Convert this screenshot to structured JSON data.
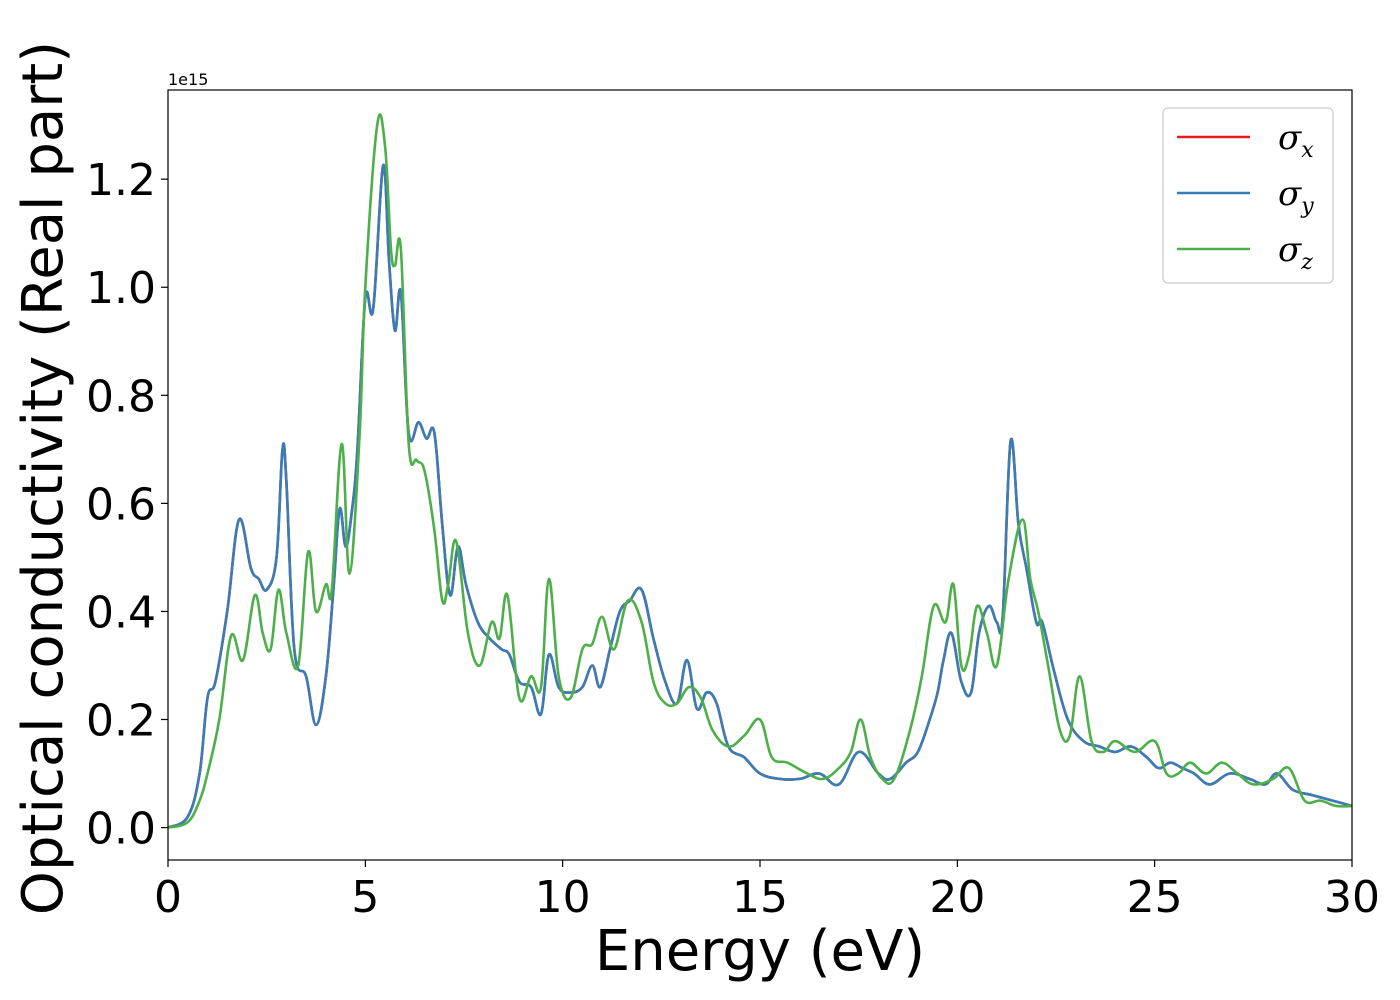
{
  "chart_data": {
    "type": "line",
    "title": "",
    "xlabel": "Energy (eV)",
    "ylabel": "Optical conductivity (Real part)",
    "y_offset_label": "1e15",
    "xlim": [
      0,
      30
    ],
    "ylim": [
      -0.06,
      1.365
    ],
    "xticks": [
      0,
      5,
      10,
      15,
      20,
      25,
      30
    ],
    "xtick_labels": [
      "0",
      "5",
      "10",
      "15",
      "20",
      "25",
      "30"
    ],
    "yticks": [
      0.0,
      0.2,
      0.4,
      0.6,
      0.8,
      1.0,
      1.2
    ],
    "ytick_labels": [
      "0.0",
      "0.2",
      "0.4",
      "0.6",
      "0.8",
      "1.0",
      "1.2"
    ],
    "grid": false,
    "legend_position": "top-right",
    "series": [
      {
        "name": "σx",
        "symbol": "σ",
        "subscript": "x",
        "color": "#e41a1c",
        "x": [
          0,
          0.5,
          0.8,
          1.0,
          1.2,
          1.5,
          1.8,
          2.1,
          2.3,
          2.5,
          2.75,
          2.9,
          3.0,
          3.2,
          3.5,
          3.75,
          4.0,
          4.2,
          4.35,
          4.5,
          4.65,
          4.8,
          5.0,
          5.2,
          5.45,
          5.6,
          5.75,
          5.9,
          6.1,
          6.35,
          6.55,
          6.75,
          6.95,
          7.15,
          7.35,
          7.55,
          7.85,
          8.15,
          8.45,
          8.65,
          8.9,
          9.2,
          9.45,
          9.65,
          9.9,
          10.2,
          10.5,
          10.75,
          10.95,
          11.2,
          11.45,
          11.7,
          12.0,
          12.3,
          12.6,
          12.9,
          13.15,
          13.4,
          13.65,
          13.9,
          14.2,
          14.6,
          15.0,
          15.5,
          16.0,
          16.5,
          17.0,
          17.5,
          18.0,
          18.3,
          18.7,
          19.0,
          19.3,
          19.5,
          19.65,
          19.85,
          20.1,
          20.35,
          20.55,
          20.8,
          21.0,
          21.15,
          21.35,
          21.55,
          21.75,
          22.0,
          22.15,
          22.45,
          22.8,
          23.2,
          23.6,
          24.0,
          24.4,
          24.8,
          25.1,
          25.4,
          25.7,
          26.0,
          26.4,
          26.9,
          27.4,
          27.8,
          28.1,
          28.5,
          29.0,
          29.5,
          30.0
        ],
        "y": [
          0.0,
          0.02,
          0.1,
          0.24,
          0.27,
          0.4,
          0.57,
          0.48,
          0.46,
          0.44,
          0.5,
          0.7,
          0.64,
          0.33,
          0.28,
          0.19,
          0.28,
          0.45,
          0.59,
          0.52,
          0.58,
          0.7,
          0.98,
          0.96,
          1.225,
          1.05,
          0.92,
          0.99,
          0.73,
          0.75,
          0.72,
          0.73,
          0.56,
          0.43,
          0.52,
          0.45,
          0.38,
          0.35,
          0.33,
          0.32,
          0.27,
          0.26,
          0.21,
          0.32,
          0.26,
          0.25,
          0.26,
          0.3,
          0.26,
          0.33,
          0.4,
          0.42,
          0.44,
          0.35,
          0.27,
          0.23,
          0.31,
          0.22,
          0.25,
          0.23,
          0.15,
          0.13,
          0.1,
          0.09,
          0.09,
          0.1,
          0.08,
          0.14,
          0.1,
          0.09,
          0.12,
          0.14,
          0.2,
          0.25,
          0.31,
          0.36,
          0.27,
          0.25,
          0.36,
          0.41,
          0.38,
          0.39,
          0.715,
          0.56,
          0.48,
          0.38,
          0.38,
          0.29,
          0.2,
          0.16,
          0.15,
          0.14,
          0.15,
          0.13,
          0.11,
          0.12,
          0.11,
          0.1,
          0.08,
          0.1,
          0.09,
          0.08,
          0.1,
          0.07,
          0.06,
          0.05,
          0.04
        ]
      },
      {
        "name": "σy",
        "symbol": "σ",
        "subscript": "y",
        "color": "#377eb8",
        "x": [
          0,
          0.5,
          0.8,
          1.0,
          1.2,
          1.5,
          1.8,
          2.1,
          2.3,
          2.5,
          2.75,
          2.9,
          3.0,
          3.2,
          3.5,
          3.75,
          4.0,
          4.2,
          4.35,
          4.5,
          4.65,
          4.8,
          5.0,
          5.2,
          5.45,
          5.6,
          5.75,
          5.9,
          6.1,
          6.35,
          6.55,
          6.75,
          6.95,
          7.15,
          7.35,
          7.55,
          7.85,
          8.15,
          8.45,
          8.65,
          8.9,
          9.2,
          9.45,
          9.65,
          9.9,
          10.2,
          10.5,
          10.75,
          10.95,
          11.2,
          11.45,
          11.7,
          12.0,
          12.3,
          12.6,
          12.9,
          13.15,
          13.4,
          13.65,
          13.9,
          14.2,
          14.6,
          15.0,
          15.5,
          16.0,
          16.5,
          17.0,
          17.5,
          18.0,
          18.3,
          18.7,
          19.0,
          19.3,
          19.5,
          19.65,
          19.85,
          20.1,
          20.35,
          20.55,
          20.8,
          21.0,
          21.15,
          21.35,
          21.55,
          21.75,
          22.0,
          22.15,
          22.45,
          22.8,
          23.2,
          23.6,
          24.0,
          24.4,
          24.8,
          25.1,
          25.4,
          25.7,
          26.0,
          26.4,
          26.9,
          27.4,
          27.8,
          28.1,
          28.5,
          29.0,
          29.5,
          30.0
        ],
        "y": [
          0.0,
          0.02,
          0.1,
          0.24,
          0.27,
          0.4,
          0.57,
          0.48,
          0.46,
          0.44,
          0.5,
          0.7,
          0.64,
          0.33,
          0.28,
          0.19,
          0.28,
          0.45,
          0.59,
          0.52,
          0.58,
          0.7,
          0.98,
          0.96,
          1.225,
          1.05,
          0.92,
          0.99,
          0.73,
          0.75,
          0.72,
          0.73,
          0.56,
          0.43,
          0.52,
          0.45,
          0.38,
          0.35,
          0.33,
          0.32,
          0.27,
          0.26,
          0.21,
          0.32,
          0.26,
          0.25,
          0.26,
          0.3,
          0.26,
          0.33,
          0.4,
          0.42,
          0.44,
          0.35,
          0.27,
          0.23,
          0.31,
          0.22,
          0.25,
          0.23,
          0.15,
          0.13,
          0.1,
          0.09,
          0.09,
          0.1,
          0.08,
          0.14,
          0.1,
          0.09,
          0.12,
          0.14,
          0.2,
          0.25,
          0.31,
          0.36,
          0.27,
          0.25,
          0.36,
          0.41,
          0.38,
          0.39,
          0.715,
          0.56,
          0.48,
          0.38,
          0.38,
          0.29,
          0.2,
          0.16,
          0.15,
          0.14,
          0.15,
          0.13,
          0.11,
          0.12,
          0.11,
          0.1,
          0.08,
          0.1,
          0.09,
          0.08,
          0.1,
          0.07,
          0.06,
          0.05,
          0.04
        ]
      },
      {
        "name": "σz",
        "symbol": "σ",
        "subscript": "z",
        "color": "#4daf4a",
        "x": [
          0,
          0.5,
          0.8,
          1.0,
          1.3,
          1.6,
          1.9,
          2.2,
          2.4,
          2.6,
          2.8,
          3.0,
          3.3,
          3.55,
          3.75,
          4.0,
          4.15,
          4.4,
          4.6,
          4.85,
          5.0,
          5.3,
          5.5,
          5.65,
          5.75,
          5.9,
          6.1,
          6.3,
          6.5,
          6.75,
          6.95,
          7.1,
          7.3,
          7.6,
          7.9,
          8.2,
          8.4,
          8.6,
          8.9,
          9.2,
          9.45,
          9.65,
          9.9,
          10.2,
          10.5,
          10.75,
          11.0,
          11.3,
          11.65,
          12.0,
          12.3,
          12.6,
          12.9,
          13.2,
          13.5,
          13.8,
          14.2,
          14.6,
          15.0,
          15.3,
          15.7,
          16.2,
          16.6,
          17.0,
          17.3,
          17.55,
          17.8,
          18.1,
          18.4,
          18.8,
          19.1,
          19.4,
          19.7,
          19.9,
          20.1,
          20.3,
          20.5,
          20.75,
          21.0,
          21.3,
          21.65,
          21.85,
          22.05,
          22.3,
          22.6,
          22.85,
          23.1,
          23.4,
          23.7,
          24.0,
          24.5,
          25.0,
          25.3,
          25.6,
          25.9,
          26.3,
          26.7,
          27.1,
          27.5,
          28.0,
          28.4,
          28.8,
          29.2,
          29.6,
          30.0
        ],
        "y": [
          0.0,
          0.01,
          0.05,
          0.1,
          0.2,
          0.355,
          0.31,
          0.43,
          0.36,
          0.33,
          0.44,
          0.36,
          0.3,
          0.51,
          0.4,
          0.45,
          0.44,
          0.71,
          0.47,
          0.72,
          1.0,
          1.3,
          1.26,
          1.07,
          1.04,
          1.07,
          0.71,
          0.68,
          0.66,
          0.55,
          0.42,
          0.45,
          0.53,
          0.36,
          0.3,
          0.38,
          0.35,
          0.43,
          0.24,
          0.28,
          0.26,
          0.46,
          0.28,
          0.24,
          0.33,
          0.34,
          0.39,
          0.33,
          0.42,
          0.38,
          0.27,
          0.23,
          0.23,
          0.26,
          0.24,
          0.18,
          0.15,
          0.17,
          0.2,
          0.13,
          0.12,
          0.1,
          0.09,
          0.11,
          0.14,
          0.2,
          0.13,
          0.09,
          0.09,
          0.18,
          0.28,
          0.41,
          0.38,
          0.45,
          0.3,
          0.32,
          0.41,
          0.36,
          0.3,
          0.46,
          0.57,
          0.46,
          0.4,
          0.3,
          0.18,
          0.17,
          0.28,
          0.16,
          0.14,
          0.16,
          0.14,
          0.16,
          0.1,
          0.1,
          0.12,
          0.1,
          0.12,
          0.1,
          0.08,
          0.09,
          0.11,
          0.05,
          0.05,
          0.04,
          0.04
        ]
      }
    ]
  }
}
